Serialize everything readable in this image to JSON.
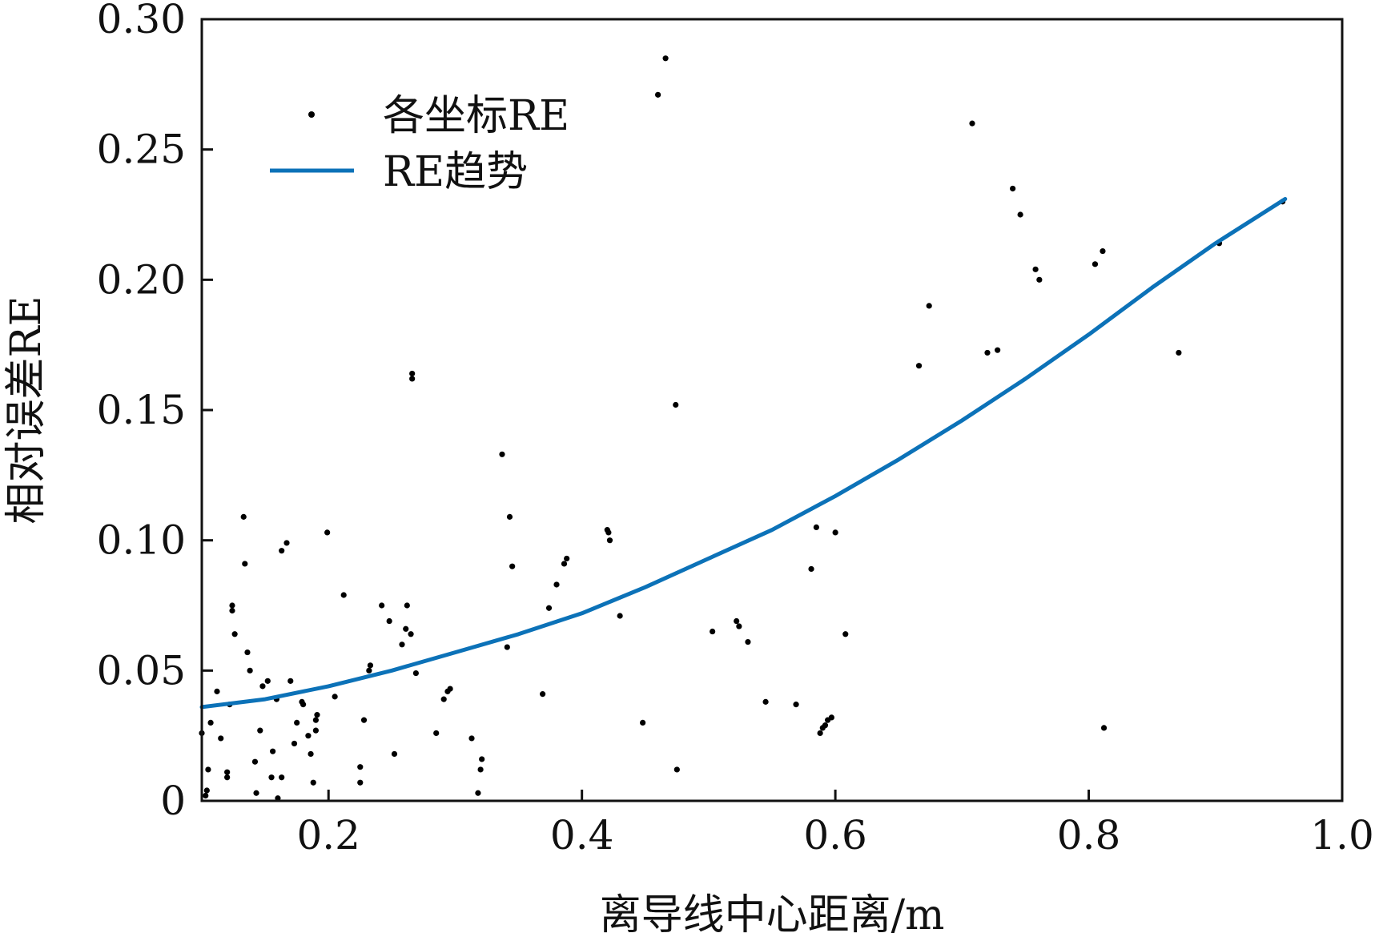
{
  "chart_data": {
    "type": "scatter",
    "xlabel": "离导线中心距离/m",
    "ylabel": "相对误差RE",
    "xlim": [
      0.1,
      1.0
    ],
    "ylim": [
      0,
      0.3
    ],
    "x_ticks": [
      0.2,
      0.4,
      0.6,
      0.8,
      1.0
    ],
    "x_tick_labels": [
      "0.2",
      "0.4",
      "0.6",
      "0.8",
      "1.0"
    ],
    "y_ticks": [
      0,
      0.05,
      0.1,
      0.15,
      0.2,
      0.25,
      0.3
    ],
    "y_tick_labels": [
      "0",
      "0.05",
      "0.10",
      "0.15",
      "0.20",
      "0.25",
      "0.30"
    ],
    "grid": false,
    "legend_position": "top-left",
    "series": [
      {
        "name": "各坐标RE",
        "kind": "scatter",
        "color": "#000000",
        "points": [
          [
            0.1,
            0.026
          ],
          [
            0.103,
            0.002
          ],
          [
            0.104,
            0.004
          ],
          [
            0.105,
            0.012
          ],
          [
            0.107,
            0.03
          ],
          [
            0.112,
            0.042
          ],
          [
            0.115,
            0.024
          ],
          [
            0.12,
            0.011
          ],
          [
            0.12,
            0.009
          ],
          [
            0.122,
            0.037
          ],
          [
            0.124,
            0.073
          ],
          [
            0.124,
            0.075
          ],
          [
            0.126,
            0.064
          ],
          [
            0.133,
            0.109
          ],
          [
            0.134,
            0.091
          ],
          [
            0.136,
            0.057
          ],
          [
            0.138,
            0.05
          ],
          [
            0.142,
            0.015
          ],
          [
            0.143,
            0.003
          ],
          [
            0.146,
            0.027
          ],
          [
            0.148,
            0.044
          ],
          [
            0.152,
            0.046
          ],
          [
            0.155,
            0.009
          ],
          [
            0.156,
            0.019
          ],
          [
            0.159,
            0.039
          ],
          [
            0.16,
            0.001
          ],
          [
            0.163,
            0.096
          ],
          [
            0.163,
            0.009
          ],
          [
            0.167,
            0.099
          ],
          [
            0.17,
            0.046
          ],
          [
            0.173,
            0.022
          ],
          [
            0.175,
            0.03
          ],
          [
            0.179,
            0.038
          ],
          [
            0.18,
            0.037
          ],
          [
            0.184,
            0.025
          ],
          [
            0.186,
            0.018
          ],
          [
            0.188,
            0.007
          ],
          [
            0.19,
            0.027
          ],
          [
            0.19,
            0.031
          ],
          [
            0.191,
            0.033
          ],
          [
            0.199,
            0.103
          ],
          [
            0.205,
            0.04
          ],
          [
            0.212,
            0.079
          ],
          [
            0.225,
            0.013
          ],
          [
            0.225,
            0.007
          ],
          [
            0.228,
            0.031
          ],
          [
            0.232,
            0.05
          ],
          [
            0.233,
            0.052
          ],
          [
            0.252,
            0.018
          ],
          [
            0.242,
            0.075
          ],
          [
            0.248,
            0.069
          ],
          [
            0.258,
            0.06
          ],
          [
            0.261,
            0.066
          ],
          [
            0.262,
            0.075
          ],
          [
            0.265,
            0.064
          ],
          [
            0.266,
            0.162
          ],
          [
            0.266,
            0.164
          ],
          [
            0.269,
            0.049
          ],
          [
            0.285,
            0.026
          ],
          [
            0.291,
            0.039
          ],
          [
            0.294,
            0.042
          ],
          [
            0.296,
            0.043
          ],
          [
            0.313,
            0.024
          ],
          [
            0.318,
            0.003
          ],
          [
            0.32,
            0.012
          ],
          [
            0.321,
            0.016
          ],
          [
            0.337,
            0.133
          ],
          [
            0.341,
            0.059
          ],
          [
            0.343,
            0.109
          ],
          [
            0.345,
            0.09
          ],
          [
            0.369,
            0.041
          ],
          [
            0.374,
            0.074
          ],
          [
            0.38,
            0.083
          ],
          [
            0.386,
            0.091
          ],
          [
            0.388,
            0.093
          ],
          [
            0.42,
            0.104
          ],
          [
            0.421,
            0.103
          ],
          [
            0.422,
            0.1
          ],
          [
            0.43,
            0.071
          ],
          [
            0.448,
            0.03
          ],
          [
            0.46,
            0.271
          ],
          [
            0.466,
            0.285
          ],
          [
            0.474,
            0.152
          ],
          [
            0.475,
            0.012
          ],
          [
            0.503,
            0.065
          ],
          [
            0.522,
            0.069
          ],
          [
            0.524,
            0.067
          ],
          [
            0.531,
            0.061
          ],
          [
            0.545,
            0.038
          ],
          [
            0.569,
            0.037
          ],
          [
            0.581,
            0.089
          ],
          [
            0.585,
            0.105
          ],
          [
            0.588,
            0.026
          ],
          [
            0.59,
            0.028
          ],
          [
            0.592,
            0.029
          ],
          [
            0.594,
            0.031
          ],
          [
            0.597,
            0.032
          ],
          [
            0.6,
            0.103
          ],
          [
            0.608,
            0.064
          ],
          [
            0.666,
            0.167
          ],
          [
            0.674,
            0.19
          ],
          [
            0.708,
            0.26
          ],
          [
            0.72,
            0.172
          ],
          [
            0.728,
            0.173
          ],
          [
            0.74,
            0.235
          ],
          [
            0.746,
            0.225
          ],
          [
            0.758,
            0.204
          ],
          [
            0.761,
            0.2
          ],
          [
            0.805,
            0.206
          ],
          [
            0.811,
            0.211
          ],
          [
            0.812,
            0.028
          ],
          [
            0.871,
            0.172
          ],
          [
            0.903,
            0.214
          ],
          [
            0.953,
            0.23
          ]
        ]
      },
      {
        "name": "RE趋势",
        "kind": "line",
        "color": "#0c72b8",
        "x": [
          0.1,
          0.15,
          0.2,
          0.25,
          0.3,
          0.35,
          0.4,
          0.45,
          0.5,
          0.55,
          0.6,
          0.65,
          0.7,
          0.75,
          0.8,
          0.85,
          0.9,
          0.955
        ],
        "y": [
          0.036,
          0.039,
          0.044,
          0.05,
          0.057,
          0.064,
          0.072,
          0.082,
          0.093,
          0.104,
          0.117,
          0.131,
          0.146,
          0.162,
          0.179,
          0.197,
          0.214,
          0.231
        ]
      }
    ]
  }
}
